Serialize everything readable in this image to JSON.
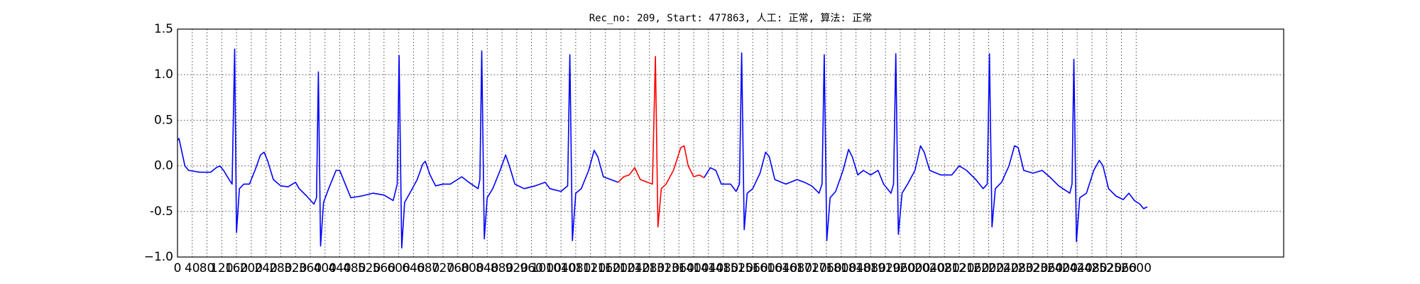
{
  "chart_data": {
    "type": "line",
    "title": "Rec_no: 209, Start: 477863, 人工: 正常, 算法: 正常",
    "xlim": [
      0,
      3000
    ],
    "ylim": [
      -1.0,
      1.5
    ],
    "xticks": [
      0,
      40,
      80,
      120,
      160,
      200,
      240,
      280,
      320,
      360,
      400,
      440,
      480,
      520,
      560,
      600,
      640,
      680,
      720,
      760,
      800,
      840,
      880,
      920,
      960,
      1000,
      1040,
      1080,
      1120,
      1160,
      1200,
      1240,
      1280,
      1320,
      1360,
      1400,
      1440,
      1480,
      1520,
      1560,
      1600,
      1640,
      1680,
      1720,
      1760,
      1800,
      1840,
      1880,
      1920,
      1960,
      2000,
      2040,
      2080,
      2120,
      2160,
      2200,
      2240,
      2280,
      2320,
      2360,
      2400,
      2440,
      2480,
      2520,
      2560,
      2600
    ],
    "yticks": [
      {
        "value": -1.0,
        "label": "−1.0"
      },
      -0.5,
      {
        "value": 0.0,
        "label": "0.0"
      },
      0.5,
      {
        "value": 1.0,
        "label": "1.0"
      },
      1.5
    ],
    "grid": true,
    "series": [
      {
        "color": "#0000ff",
        "x": [
          0,
          4,
          20,
          30,
          60,
          90,
          105,
          115,
          125,
          140,
          148,
          155,
          160,
          168,
          180,
          195,
          210,
          225,
          235,
          245,
          260,
          280,
          300,
          320,
          330,
          350,
          370,
          377,
          382,
          388,
          396,
          410,
          430,
          440,
          455,
          470,
          500,
          530,
          560,
          585,
          596,
          601,
          608,
          616,
          630,
          650,
          665,
          672,
          685,
          700,
          720,
          740,
          771,
          790,
          815,
          820,
          825,
          832,
          840,
          855,
          875,
          890,
          900,
          915,
          940,
          970,
          997,
          1010,
          1040,
          1058,
          1064,
          1071,
          1080,
          1095,
          1115,
          1130,
          1140,
          1155,
          1175,
          1195,
          1300,
          1428,
          1445,
          1460,
          1475,
          1500,
          1515,
          1524,
          1530,
          1537,
          1545,
          1560,
          1580,
          1595,
          1605,
          1620,
          1650,
          1680,
          1700,
          1720,
          1740,
          1748,
          1754,
          1761,
          1770,
          1785,
          1805,
          1820,
          1830,
          1845,
          1860,
          1880,
          1900,
          1915,
          1935,
          1942,
          1948,
          1955,
          1965,
          1980,
          2000,
          2015,
          2025,
          2040,
          2070,
          2100,
          2120,
          2140,
          2165,
          2185,
          2196,
          2202,
          2209,
          2218,
          2235,
          2255,
          2270,
          2280,
          2295,
          2320,
          2345,
          2365,
          2390,
          2420,
          2426,
          2431,
          2438,
          2447,
          2465,
          2485,
          2500,
          2510,
          2525,
          2545,
          2565,
          2580,
          2595,
          2610,
          2620,
          2630
        ],
        "values": [
          0.28,
          0.3,
          0.0,
          -0.05,
          -0.07,
          -0.07,
          -0.02,
          0.0,
          -0.05,
          -0.15,
          -0.2,
          1.28,
          -0.73,
          -0.25,
          -0.2,
          -0.2,
          -0.05,
          0.12,
          0.15,
          0.05,
          -0.15,
          -0.22,
          -0.23,
          -0.18,
          -0.25,
          -0.33,
          -0.42,
          -0.35,
          1.03,
          -0.88,
          -0.4,
          -0.25,
          -0.05,
          -0.05,
          -0.2,
          -0.35,
          -0.33,
          -0.3,
          -0.32,
          -0.38,
          -0.2,
          1.21,
          -0.9,
          -0.4,
          -0.3,
          -0.15,
          0.02,
          0.05,
          -0.1,
          -0.22,
          -0.2,
          -0.2,
          -0.12,
          -0.18,
          -0.25,
          -0.15,
          1.26,
          -0.8,
          -0.35,
          -0.25,
          -0.05,
          0.12,
          0.0,
          -0.2,
          -0.25,
          -0.22,
          -0.18,
          -0.25,
          -0.28,
          -0.22,
          1.22,
          -0.82,
          -0.3,
          -0.25,
          -0.05,
          0.17,
          0.1,
          -0.12,
          -0.15,
          -0.18,
          null,
          -0.13,
          -0.02,
          -0.05,
          -0.2,
          -0.2,
          -0.28,
          -0.2,
          1.24,
          -0.7,
          -0.3,
          -0.25,
          -0.08,
          0.15,
          0.1,
          -0.15,
          -0.2,
          -0.15,
          -0.18,
          -0.22,
          -0.3,
          -0.2,
          1.22,
          -0.82,
          -0.35,
          -0.28,
          -0.05,
          0.18,
          0.1,
          -0.1,
          -0.05,
          -0.1,
          -0.05,
          -0.2,
          -0.3,
          -0.2,
          1.23,
          -0.75,
          -0.3,
          -0.2,
          -0.05,
          0.22,
          0.15,
          -0.05,
          -0.1,
          -0.1,
          0.0,
          -0.05,
          -0.15,
          -0.25,
          -0.2,
          1.23,
          -0.67,
          -0.25,
          -0.18,
          0.0,
          0.22,
          0.2,
          -0.05,
          -0.08,
          -0.05,
          -0.12,
          -0.22,
          -0.3,
          -0.2,
          1.17,
          -0.83,
          -0.35,
          -0.3,
          -0.05,
          0.06,
          0.0,
          -0.25,
          -0.33,
          -0.37,
          -0.3,
          -0.38,
          -0.42,
          -0.47,
          -0.45
        ]
      },
      {
        "color": "#ff0000",
        "x": [
          1195,
          1210,
          1225,
          1240,
          1255,
          1275,
          1288,
          1296,
          1303,
          1312,
          1325,
          1345,
          1365,
          1374,
          1385,
          1400,
          1415,
          1428
        ],
        "values": [
          -0.18,
          -0.12,
          -0.1,
          -0.02,
          -0.15,
          -0.18,
          -0.2,
          1.2,
          -0.67,
          -0.25,
          -0.2,
          -0.05,
          0.2,
          0.22,
          0.0,
          -0.12,
          -0.1,
          -0.13
        ]
      }
    ]
  }
}
